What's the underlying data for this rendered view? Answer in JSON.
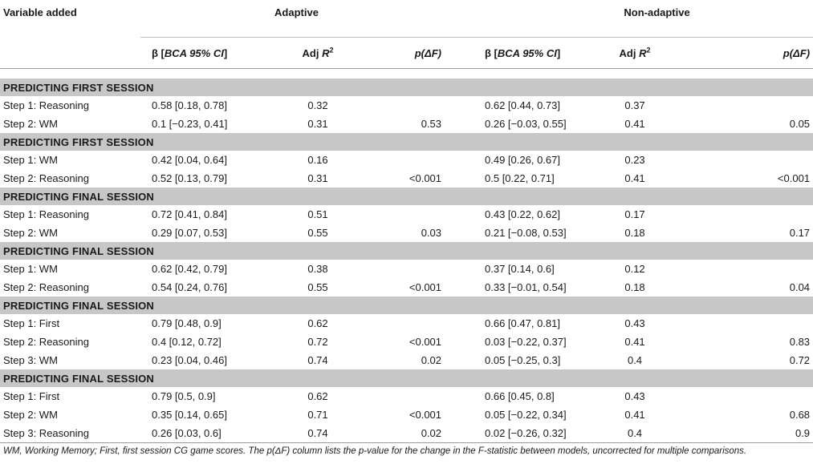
{
  "header": {
    "variable_added": "Variable added",
    "group_adaptive": "Adaptive",
    "group_nonadaptive": "Non-adaptive",
    "beta_prefix": "β [",
    "beta_ci": "BCA 95% CI",
    "beta_suffix": "]",
    "adj_prefix": "Adj ",
    "adj_R": "R",
    "adj_sup": "2",
    "p_label": "p(ΔF)"
  },
  "sections": [
    {
      "title": "PREDICTING FIRST SESSION",
      "rows": [
        {
          "step": "Step 1: Reasoning",
          "a_beta": "0.58 [0.18, 0.78]",
          "a_r2": "0.32",
          "a_p": "",
          "n_beta": "0.62 [0.44, 0.73]",
          "n_r2": "0.37",
          "n_p": ""
        },
        {
          "step": "Step 2: WM",
          "a_beta": "0.1 [−0.23, 0.41]",
          "a_r2": "0.31",
          "a_p": "0.53",
          "n_beta": "0.26 [−0.03, 0.55]",
          "n_r2": "0.41",
          "n_p": "0.05"
        }
      ]
    },
    {
      "title": "PREDICTING FIRST SESSION",
      "rows": [
        {
          "step": "Step 1: WM",
          "a_beta": "0.42 [0.04, 0.64]",
          "a_r2": "0.16",
          "a_p": "",
          "n_beta": "0.49 [0.26, 0.67]",
          "n_r2": "0.23",
          "n_p": ""
        },
        {
          "step": "Step 2: Reasoning",
          "a_beta": "0.52 [0.13, 0.79]",
          "a_r2": "0.31",
          "a_p": "<0.001",
          "n_beta": "0.5 [0.22, 0.71]",
          "n_r2": "0.41",
          "n_p": "<0.001"
        }
      ]
    },
    {
      "title": "PREDICTING FINAL SESSION",
      "rows": [
        {
          "step": "Step 1: Reasoning",
          "a_beta": "0.72 [0.41, 0.84]",
          "a_r2": "0.51",
          "a_p": "",
          "n_beta": "0.43 [0.22, 0.62]",
          "n_r2": "0.17",
          "n_p": ""
        },
        {
          "step": "Step 2: WM",
          "a_beta": "0.29 [0.07, 0.53]",
          "a_r2": "0.55",
          "a_p": "0.03",
          "n_beta": "0.21 [−0.08, 0.53]",
          "n_r2": "0.18",
          "n_p": "0.17"
        }
      ]
    },
    {
      "title": "PREDICTING FINAL SESSION",
      "rows": [
        {
          "step": "Step 1: WM",
          "a_beta": "0.62 [0.42, 0.79]",
          "a_r2": "0.38",
          "a_p": "",
          "n_beta": "0.37 [0.14, 0.6]",
          "n_r2": "0.12",
          "n_p": ""
        },
        {
          "step": "Step 2: Reasoning",
          "a_beta": "0.54 [0.24, 0.76]",
          "a_r2": "0.55",
          "a_p": "<0.001",
          "n_beta": "0.33 [−0.01, 0.54]",
          "n_r2": "0.18",
          "n_p": "0.04"
        }
      ]
    },
    {
      "title": "PREDICTING FINAL SESSION",
      "rows": [
        {
          "step": "Step 1: First",
          "a_beta": "0.79 [0.48, 0.9]",
          "a_r2": "0.62",
          "a_p": "",
          "n_beta": "0.66 [0.47, 0.81]",
          "n_r2": "0.43",
          "n_p": ""
        },
        {
          "step": "Step 2: Reasoning",
          "a_beta": "0.4 [0.12, 0.72]",
          "a_r2": "0.72",
          "a_p": "<0.001",
          "n_beta": "0.03 [−0.22, 0.37]",
          "n_r2": "0.41",
          "n_p": "0.83"
        },
        {
          "step": "Step 3: WM",
          "a_beta": "0.23 [0.04, 0.46]",
          "a_r2": "0.74",
          "a_p": "0.02",
          "n_beta": "0.05 [−0.25, 0.3]",
          "n_r2": "0.4",
          "n_p": "0.72"
        }
      ]
    },
    {
      "title": "PREDICTING FINAL SESSION",
      "rows": [
        {
          "step": "Step 1: First",
          "a_beta": "0.79 [0.5, 0.9]",
          "a_r2": "0.62",
          "a_p": "",
          "n_beta": "0.66 [0.45, 0.8]",
          "n_r2": "0.43",
          "n_p": ""
        },
        {
          "step": "Step 2: WM",
          "a_beta": "0.35 [0.14, 0.65]",
          "a_r2": "0.71",
          "a_p": "<0.001",
          "n_beta": "0.05 [−0.22, 0.34]",
          "n_r2": "0.41",
          "n_p": "0.68"
        },
        {
          "step": "Step 3: Reasoning",
          "a_beta": "0.26 [0.03, 0.6]",
          "a_r2": "0.74",
          "a_p": "0.02",
          "n_beta": "0.02 [−0.26, 0.32]",
          "n_r2": "0.4",
          "n_p": "0.9"
        }
      ]
    }
  ],
  "footnote": "WM, Working Memory; First, first session CG game scores. The p(ΔF) column lists the p-value for the change in the F-statistic between models, uncorrected for multiple comparisons."
}
